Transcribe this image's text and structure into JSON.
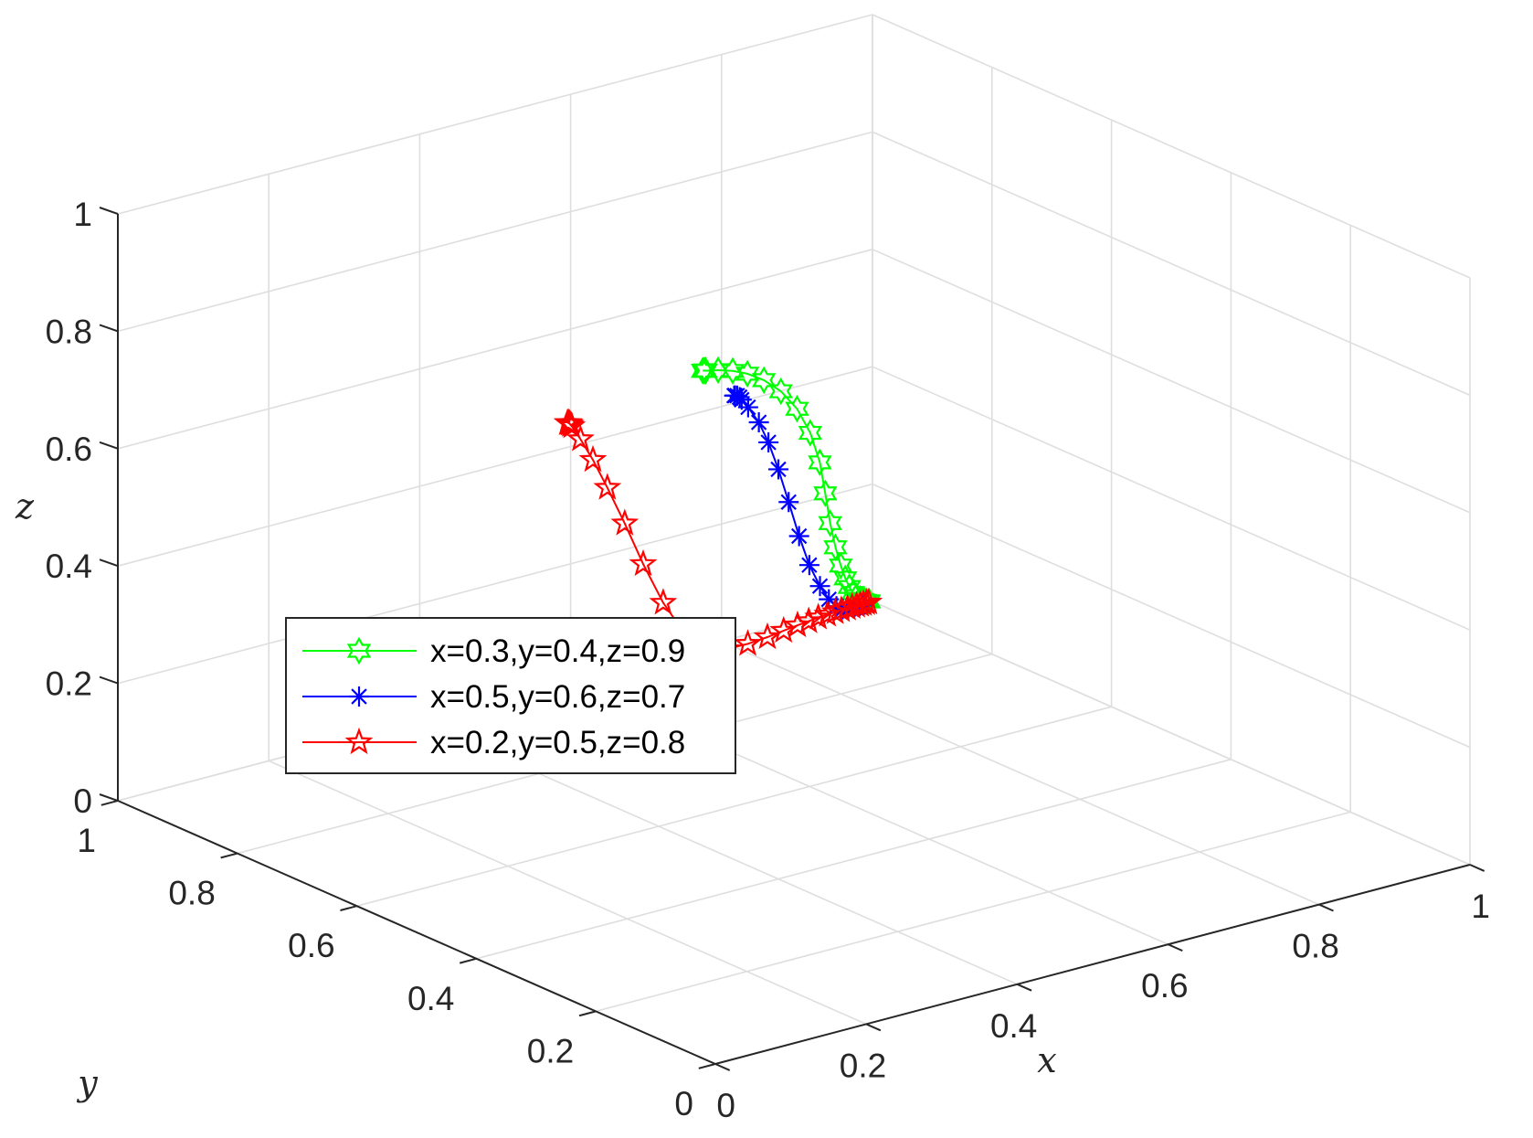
{
  "chart_data": {
    "type": "line3d",
    "xlabel": "x",
    "ylabel": "y",
    "zlabel": "z",
    "xlim": [
      0,
      1
    ],
    "ylim": [
      0,
      1
    ],
    "zlim": [
      0,
      1
    ],
    "xticks": [
      "0",
      "0.2",
      "0.4",
      "0.6",
      "0.8",
      "1"
    ],
    "yticks": [
      "0",
      "0.2",
      "0.4",
      "0.6",
      "0.8",
      "1"
    ],
    "zticks": [
      "0",
      "0.2",
      "0.4",
      "0.6",
      "0.8",
      "1"
    ],
    "grid": true,
    "legend_position": "middle-left",
    "series": [
      {
        "name": "x=0.3,y=0.4,z=0.9",
        "color": "#00ff00",
        "marker": "hexagram",
        "points": [
          [
            0.3,
            0.4,
            0.9
          ],
          [
            0.302,
            0.401,
            0.899
          ],
          [
            0.304,
            0.402,
            0.898
          ],
          [
            0.306,
            0.403,
            0.897
          ],
          [
            0.308,
            0.405,
            0.895
          ],
          [
            0.337,
            0.421,
            0.879
          ],
          [
            0.373,
            0.442,
            0.856
          ],
          [
            0.413,
            0.468,
            0.826
          ],
          [
            0.461,
            0.501,
            0.784
          ],
          [
            0.516,
            0.542,
            0.728
          ],
          [
            0.577,
            0.592,
            0.655
          ],
          [
            0.642,
            0.652,
            0.565
          ],
          [
            0.707,
            0.718,
            0.463
          ],
          [
            0.768,
            0.786,
            0.359
          ],
          [
            0.822,
            0.846,
            0.263
          ],
          [
            0.867,
            0.894,
            0.185
          ],
          [
            0.901,
            0.928,
            0.127
          ],
          [
            0.926,
            0.952,
            0.086
          ],
          [
            0.944,
            0.968,
            0.058
          ],
          [
            0.957,
            0.978,
            0.039
          ],
          [
            0.967,
            0.985,
            0.027
          ],
          [
            0.975,
            0.989,
            0.018
          ],
          [
            0.981,
            0.993,
            0.012
          ],
          [
            0.986,
            0.995,
            0.008
          ],
          [
            0.99,
            0.997,
            0.005
          ],
          [
            0.994,
            0.998,
            0.003
          ]
        ]
      },
      {
        "name": "x=0.5,y=0.6,z=0.7",
        "color": "#0000ff",
        "marker": "asterisk",
        "points": [
          [
            0.5,
            0.6,
            0.7
          ],
          [
            0.502,
            0.601,
            0.699
          ],
          [
            0.508,
            0.605,
            0.695
          ],
          [
            0.516,
            0.611,
            0.687
          ],
          [
            0.525,
            0.619,
            0.676
          ],
          [
            0.547,
            0.636,
            0.648
          ],
          [
            0.585,
            0.666,
            0.596
          ],
          [
            0.627,
            0.703,
            0.531
          ],
          [
            0.675,
            0.747,
            0.449
          ],
          [
            0.729,
            0.798,
            0.352
          ],
          [
            0.784,
            0.85,
            0.252
          ],
          [
            0.834,
            0.896,
            0.165
          ],
          [
            0.875,
            0.93,
            0.1
          ],
          [
            0.905,
            0.953,
            0.057
          ],
          [
            0.927,
            0.968,
            0.031
          ],
          [
            0.943,
            0.978,
            0.016
          ],
          [
            0.956,
            0.985,
            0.008
          ],
          [
            0.967,
            0.99,
            0.004
          ],
          [
            0.976,
            0.993,
            0.002
          ],
          [
            0.984,
            0.995,
            0.001
          ]
        ]
      },
      {
        "name": "x=0.2,y=0.5,z=0.8",
        "color": "#ff0000",
        "marker": "pentagram",
        "points": [
          [
            0.2,
            0.5,
            0.8
          ],
          [
            0.202,
            0.501,
            0.799
          ],
          [
            0.205,
            0.503,
            0.796
          ],
          [
            0.208,
            0.505,
            0.792
          ],
          [
            0.212,
            0.508,
            0.787
          ],
          [
            0.241,
            0.53,
            0.745
          ],
          [
            0.282,
            0.561,
            0.682
          ],
          [
            0.332,
            0.6,
            0.6
          ],
          [
            0.393,
            0.648,
            0.497
          ],
          [
            0.461,
            0.703,
            0.38
          ],
          [
            0.535,
            0.763,
            0.262
          ],
          [
            0.609,
            0.823,
            0.161
          ],
          [
            0.68,
            0.877,
            0.087
          ],
          [
            0.743,
            0.92,
            0.042
          ],
          [
            0.796,
            0.951,
            0.019
          ],
          [
            0.837,
            0.97,
            0.008
          ],
          [
            0.868,
            0.982,
            0.003
          ],
          [
            0.892,
            0.989,
            0.001
          ],
          [
            0.91,
            0.993,
            0.0
          ],
          [
            0.925,
            0.996,
            0.0
          ],
          [
            0.938,
            0.997,
            0.0
          ],
          [
            0.949,
            0.998,
            0.0
          ],
          [
            0.958,
            0.999,
            0.0
          ],
          [
            0.966,
            0.999,
            0.0
          ],
          [
            0.973,
            1.0,
            0.0
          ],
          [
            0.979,
            1.0,
            0.0
          ],
          [
            0.984,
            1.0,
            0.0
          ],
          [
            0.988,
            1.0,
            0.0
          ],
          [
            0.992,
            1.0,
            0.0
          ],
          [
            0.995,
            1.0,
            0.0
          ]
        ]
      }
    ]
  }
}
